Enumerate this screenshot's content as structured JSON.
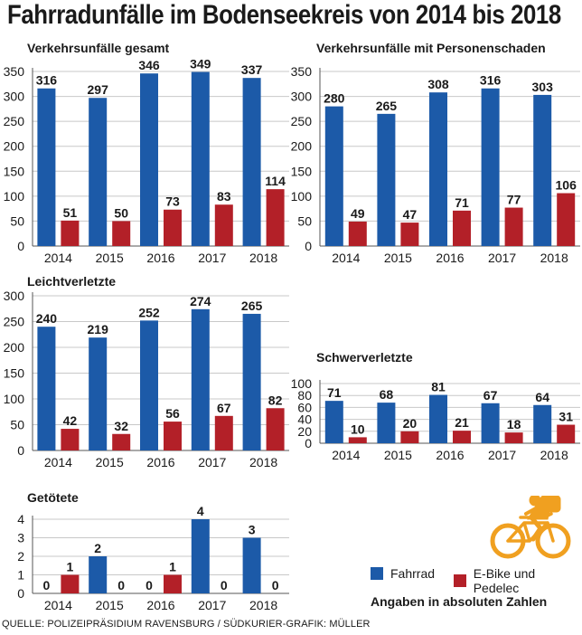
{
  "title": "Fahrradunfälle im Bodenseekreis von 2014 bis 2018",
  "colors": {
    "fahrrad": "#1c5aa8",
    "ebike": "#b32028",
    "cyclist": "#f0a020"
  },
  "legend": {
    "fahrrad": "Fahrrad",
    "ebike": "E-Bike und Pedelec"
  },
  "note": "Angaben in absoluten Zahlen",
  "source": "QUELLE: POLIZEIPRÄSIDIUM RAVENSBURG / SÜDKURIER-GRAFIK: MÜLLER",
  "icons": {
    "cyclist": "cyclist-icon"
  },
  "chart_data": [
    {
      "type": "bar",
      "title": "Verkehrsunfälle gesamt",
      "categories": [
        "2014",
        "2015",
        "2016",
        "2017",
        "2018"
      ],
      "series": [
        {
          "name": "Fahrrad",
          "values": [
            316,
            297,
            346,
            349,
            337
          ]
        },
        {
          "name": "E-Bike und Pedelec",
          "values": [
            51,
            50,
            73,
            83,
            114
          ]
        }
      ],
      "yticks": [
        0,
        50,
        100,
        150,
        200,
        250,
        300,
        350
      ],
      "ylim": [
        0,
        350
      ]
    },
    {
      "type": "bar",
      "title": "Verkehrsunfälle mit Personenschaden",
      "categories": [
        "2014",
        "2015",
        "2016",
        "2017",
        "2018"
      ],
      "series": [
        {
          "name": "Fahrrad",
          "values": [
            280,
            265,
            308,
            316,
            303
          ]
        },
        {
          "name": "E-Bike und Pedelec",
          "values": [
            49,
            47,
            71,
            77,
            106
          ]
        }
      ],
      "yticks": [
        0,
        50,
        100,
        150,
        200,
        250,
        300,
        350
      ],
      "ylim": [
        0,
        350
      ]
    },
    {
      "type": "bar",
      "title": "Leichtverletzte",
      "categories": [
        "2014",
        "2015",
        "2016",
        "2017",
        "2018"
      ],
      "series": [
        {
          "name": "Fahrrad",
          "values": [
            240,
            219,
            252,
            274,
            265
          ]
        },
        {
          "name": "E-Bike und Pedelec",
          "values": [
            42,
            32,
            56,
            67,
            82
          ]
        }
      ],
      "yticks": [
        0,
        50,
        100,
        150,
        200,
        250,
        300
      ],
      "ylim": [
        0,
        300
      ]
    },
    {
      "type": "bar",
      "title": "Schwerverletzte",
      "categories": [
        "2014",
        "2015",
        "2016",
        "2017",
        "2018"
      ],
      "series": [
        {
          "name": "Fahrrad",
          "values": [
            71,
            68,
            81,
            67,
            64
          ]
        },
        {
          "name": "E-Bike und Pedelec",
          "values": [
            10,
            20,
            21,
            18,
            31
          ]
        }
      ],
      "yticks": [
        0,
        20,
        40,
        60,
        80,
        100
      ],
      "ylim": [
        0,
        100
      ]
    },
    {
      "type": "bar",
      "title": "Getötete",
      "categories": [
        "2014",
        "2015",
        "2016",
        "2017",
        "2018"
      ],
      "series": [
        {
          "name": "Fahrrad",
          "values": [
            0,
            2,
            0,
            4,
            3
          ]
        },
        {
          "name": "E-Bike und Pedelec",
          "values": [
            1,
            0,
            1,
            0,
            0
          ]
        }
      ],
      "yticks": [
        0,
        1,
        2,
        3,
        4
      ],
      "ylim": [
        0,
        4
      ]
    }
  ]
}
